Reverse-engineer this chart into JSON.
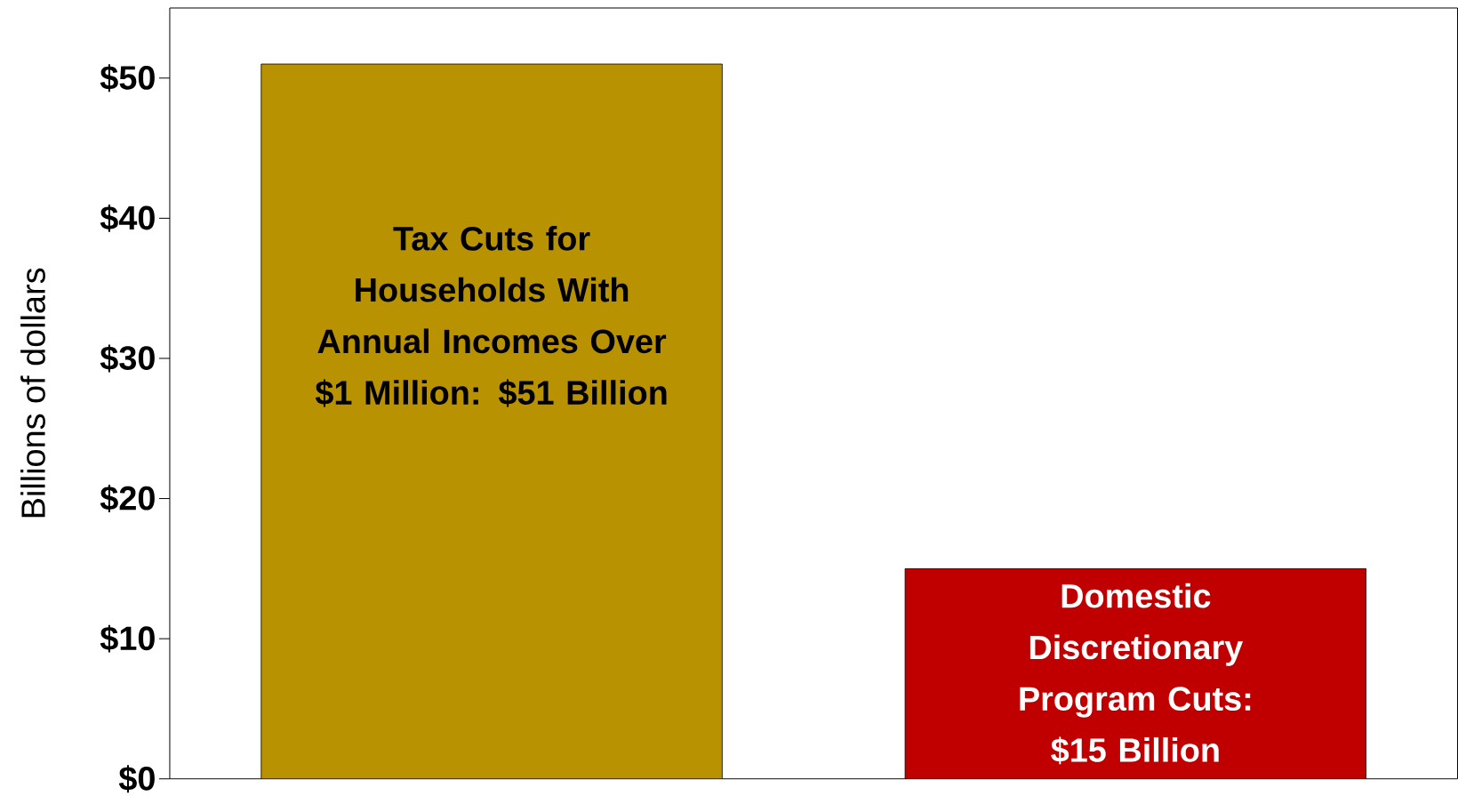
{
  "chart_data": {
    "type": "bar",
    "ylabel": "Billions of dollars",
    "categories": [
      null,
      null
    ],
    "values": [
      51,
      15
    ],
    "colors": [
      "#b89200",
      "#c00000"
    ],
    "value_labels": [
      "Tax Cuts for Households With Annual Incomes Over $1 Million: $51 Billion",
      "Domestic Discretionary Program Cuts: $15 Billion"
    ],
    "ylim": [
      0,
      55
    ],
    "yticks": [
      {
        "value": 0,
        "label": "$0"
      },
      {
        "value": 10,
        "label": "$10"
      },
      {
        "value": 20,
        "label": "$20"
      },
      {
        "value": 30,
        "label": "$30"
      },
      {
        "value": 40,
        "label": "$40"
      },
      {
        "value": 50,
        "label": "$50"
      }
    ],
    "grid": false
  }
}
